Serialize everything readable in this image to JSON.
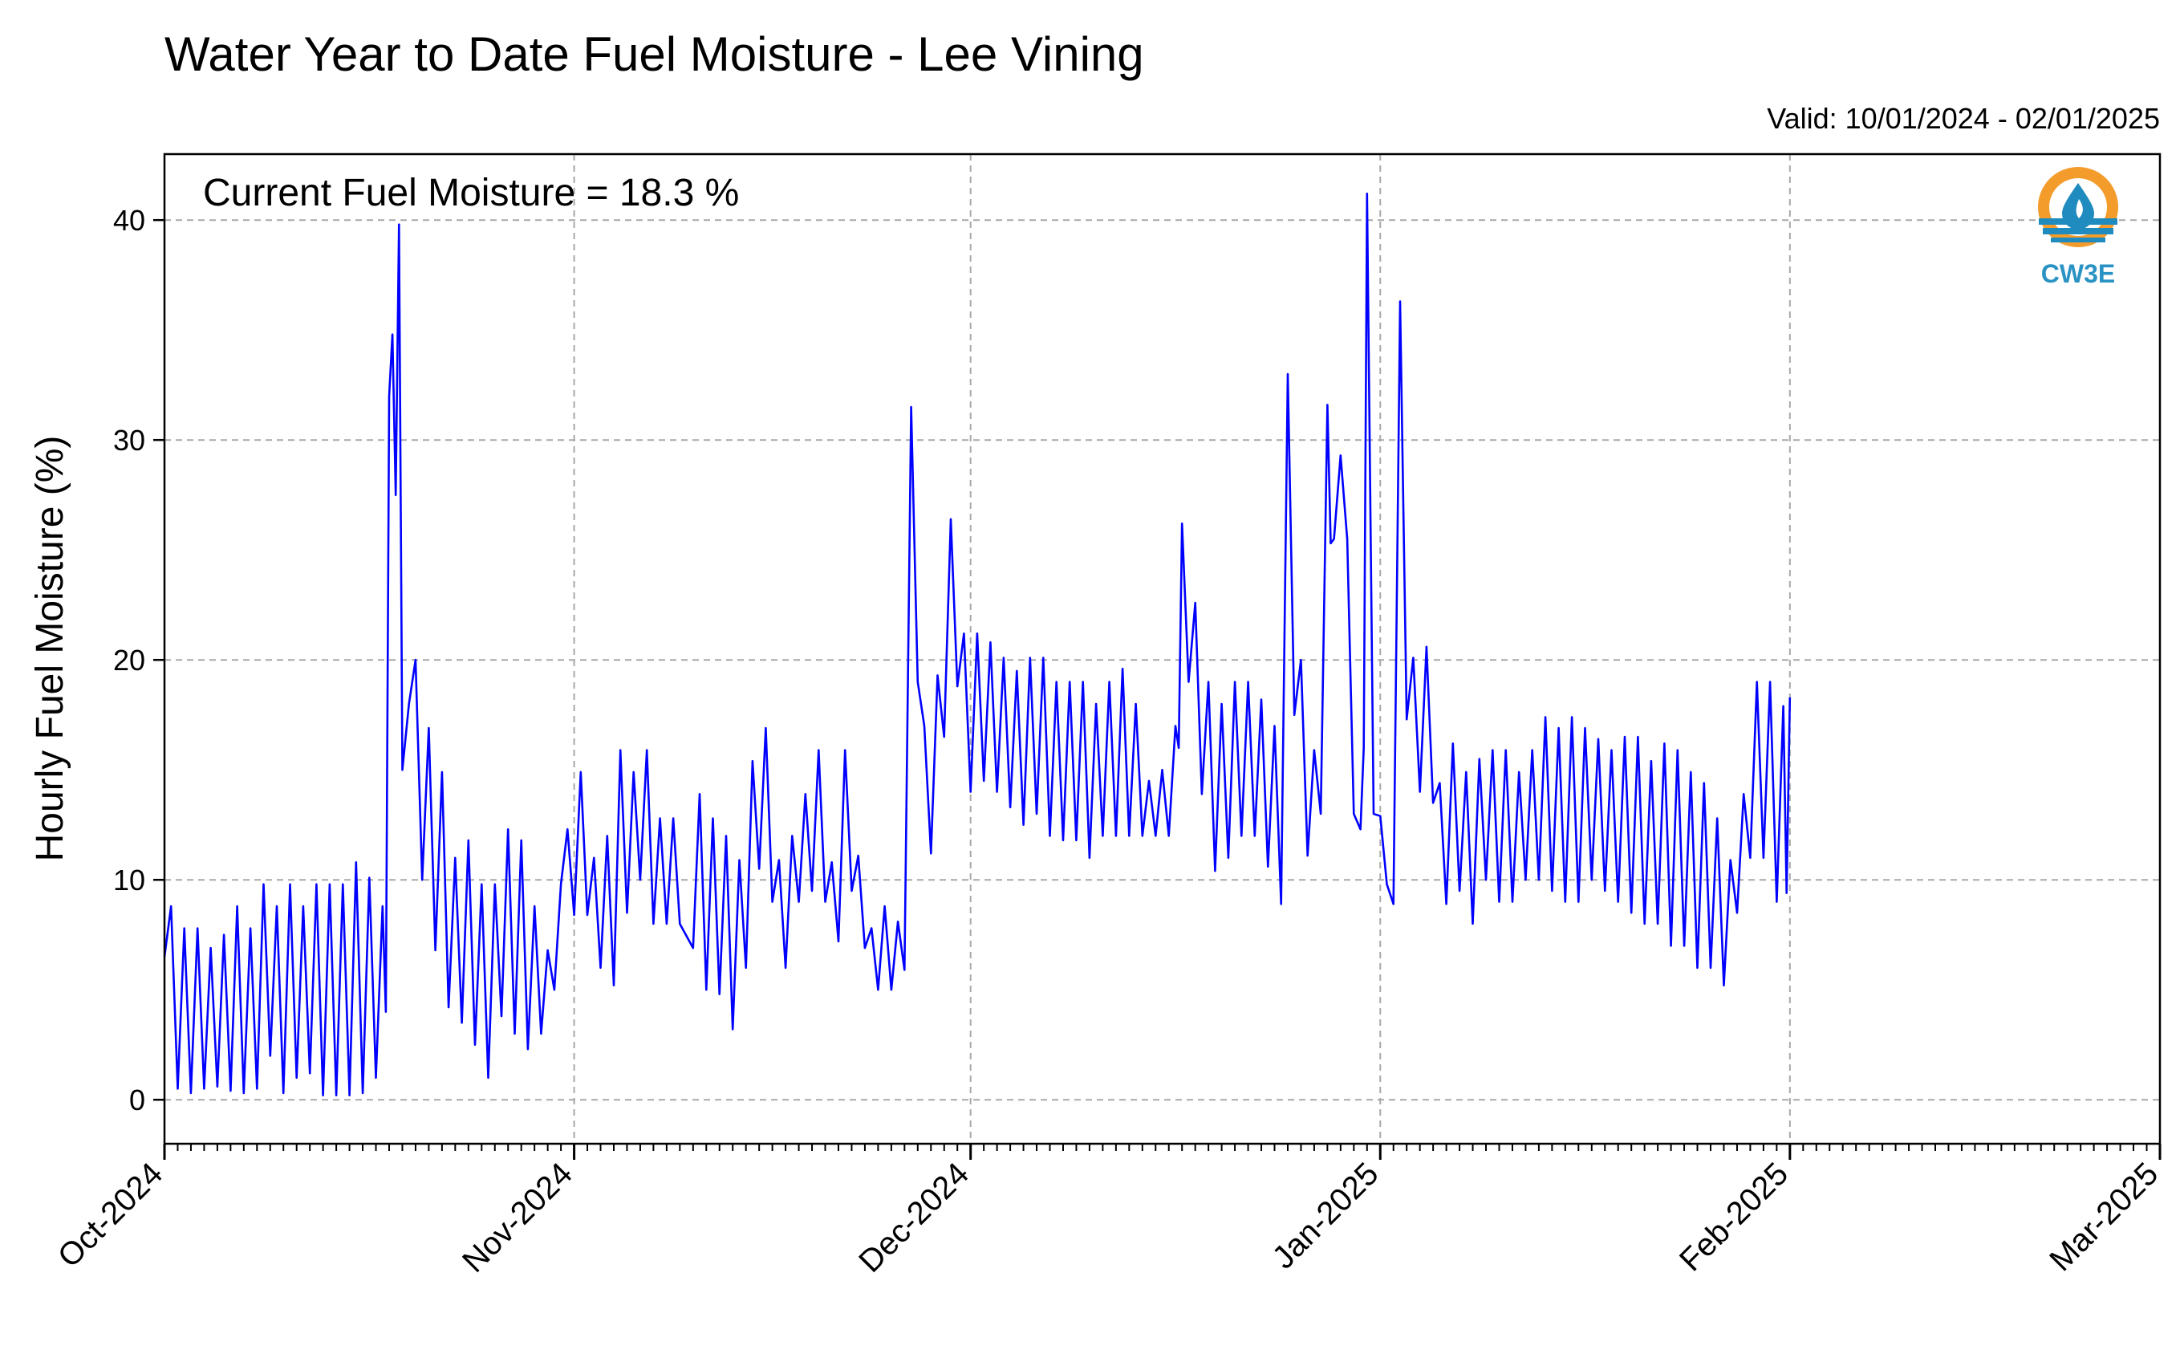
{
  "chart_data": {
    "type": "line",
    "title": "Water Year to Date Fuel Moisture - Lee Vining",
    "subtitle": "Valid: 10/01/2024 - 02/01/2025",
    "annotation": "Current Fuel Moisture = 18.3 %",
    "xlabel": "",
    "ylabel": "Hourly Fuel Moisture (%)",
    "x_range": [
      "2024-10-01",
      "2025-03-01"
    ],
    "ylim": [
      -2,
      43
    ],
    "yticks": [
      0,
      10,
      20,
      30,
      40
    ],
    "ytick_labels": [
      "0",
      "10",
      "20",
      "30",
      "40"
    ],
    "xticks": [
      "2024-10-01",
      "2024-11-01",
      "2024-12-01",
      "2025-01-01",
      "2025-02-01",
      "2025-03-01"
    ],
    "xtick_labels": [
      "Oct-2024",
      "Nov-2024",
      "Dec-2024",
      "Jan-2025",
      "Feb-2025",
      "Mar-2025"
    ],
    "grid": true,
    "line_color": "#0000ff",
    "series": [
      {
        "points": [
          [
            "2024-10-01",
            6.5
          ],
          [
            "2024-10-01T12",
            8.8
          ],
          [
            "2024-10-02",
            0.5
          ],
          [
            "2024-10-02T12",
            7.8
          ],
          [
            "2024-10-03",
            0.3
          ],
          [
            "2024-10-03T12",
            7.8
          ],
          [
            "2024-10-04",
            0.5
          ],
          [
            "2024-10-04T12",
            6.9
          ],
          [
            "2024-10-05",
            0.6
          ],
          [
            "2024-10-05T12",
            7.5
          ],
          [
            "2024-10-06",
            0.4
          ],
          [
            "2024-10-06T12",
            8.8
          ],
          [
            "2024-10-07",
            0.3
          ],
          [
            "2024-10-07T12",
            7.8
          ],
          [
            "2024-10-08",
            0.5
          ],
          [
            "2024-10-08T12",
            9.8
          ],
          [
            "2024-10-09",
            2.0
          ],
          [
            "2024-10-09T12",
            8.8
          ],
          [
            "2024-10-10",
            0.3
          ],
          [
            "2024-10-10T12",
            9.8
          ],
          [
            "2024-10-11",
            1.0
          ],
          [
            "2024-10-11T12",
            8.8
          ],
          [
            "2024-10-12",
            1.2
          ],
          [
            "2024-10-12T12",
            9.8
          ],
          [
            "2024-10-13",
            0.2
          ],
          [
            "2024-10-13T12",
            9.8
          ],
          [
            "2024-10-14",
            0.2
          ],
          [
            "2024-10-14T12",
            9.8
          ],
          [
            "2024-10-15",
            0.2
          ],
          [
            "2024-10-15T12",
            10.8
          ],
          [
            "2024-10-16",
            0.3
          ],
          [
            "2024-10-16T12",
            10.1
          ],
          [
            "2024-10-17",
            1.0
          ],
          [
            "2024-10-17T12",
            8.8
          ],
          [
            "2024-10-17T18",
            4.0
          ],
          [
            "2024-10-18",
            32.0
          ],
          [
            "2024-10-18T06",
            34.8
          ],
          [
            "2024-10-18T12",
            27.5
          ],
          [
            "2024-10-18T18",
            39.8
          ],
          [
            "2024-10-19",
            15.0
          ],
          [
            "2024-10-19T12",
            18.0
          ],
          [
            "2024-10-20",
            20.0
          ],
          [
            "2024-10-20T12",
            10.0
          ],
          [
            "2024-10-21",
            16.9
          ],
          [
            "2024-10-21T12",
            6.8
          ],
          [
            "2024-10-22",
            14.9
          ],
          [
            "2024-10-22T12",
            4.2
          ],
          [
            "2024-10-23",
            11.0
          ],
          [
            "2024-10-23T12",
            3.5
          ],
          [
            "2024-10-24",
            11.8
          ],
          [
            "2024-10-24T12",
            2.5
          ],
          [
            "2024-10-25",
            9.8
          ],
          [
            "2024-10-25T12",
            1.0
          ],
          [
            "2024-10-26",
            9.8
          ],
          [
            "2024-10-26T12",
            3.8
          ],
          [
            "2024-10-27",
            12.3
          ],
          [
            "2024-10-27T12",
            3.0
          ],
          [
            "2024-10-28",
            11.8
          ],
          [
            "2024-10-28T12",
            2.3
          ],
          [
            "2024-10-29",
            8.8
          ],
          [
            "2024-10-29T12",
            3.0
          ],
          [
            "2024-10-30",
            6.8
          ],
          [
            "2024-10-30T12",
            5.0
          ],
          [
            "2024-10-31",
            9.8
          ],
          [
            "2024-10-31T12",
            12.3
          ],
          [
            "2024-11-01",
            8.4
          ],
          [
            "2024-11-01T12",
            14.9
          ],
          [
            "2024-11-02",
            8.4
          ],
          [
            "2024-11-02T12",
            11.0
          ],
          [
            "2024-11-03",
            6.0
          ],
          [
            "2024-11-03T12",
            12.0
          ],
          [
            "2024-11-04",
            5.2
          ],
          [
            "2024-11-04T12",
            15.9
          ],
          [
            "2024-11-05",
            8.5
          ],
          [
            "2024-11-05T12",
            14.9
          ],
          [
            "2024-11-06",
            10.0
          ],
          [
            "2024-11-06T12",
            15.9
          ],
          [
            "2024-11-07",
            8.0
          ],
          [
            "2024-11-07T12",
            12.8
          ],
          [
            "2024-11-08",
            8.0
          ],
          [
            "2024-11-08T12",
            12.8
          ],
          [
            "2024-11-09",
            8.0
          ],
          [
            "2024-11-10",
            6.9
          ],
          [
            "2024-11-10T12",
            13.9
          ],
          [
            "2024-11-11",
            5.0
          ],
          [
            "2024-11-11T12",
            12.8
          ],
          [
            "2024-11-12",
            4.8
          ],
          [
            "2024-11-12T12",
            12.0
          ],
          [
            "2024-11-13",
            3.2
          ],
          [
            "2024-11-13T12",
            10.9
          ],
          [
            "2024-11-14",
            6.0
          ],
          [
            "2024-11-14T12",
            15.4
          ],
          [
            "2024-11-15",
            10.5
          ],
          [
            "2024-11-15T12",
            16.9
          ],
          [
            "2024-11-16",
            9.0
          ],
          [
            "2024-11-16T12",
            10.9
          ],
          [
            "2024-11-17",
            6.0
          ],
          [
            "2024-11-17T12",
            12.0
          ],
          [
            "2024-11-18",
            9.0
          ],
          [
            "2024-11-18T12",
            13.9
          ],
          [
            "2024-11-19",
            9.5
          ],
          [
            "2024-11-19T12",
            15.9
          ],
          [
            "2024-11-20",
            9.0
          ],
          [
            "2024-11-20T12",
            10.8
          ],
          [
            "2024-11-21",
            7.2
          ],
          [
            "2024-11-21T12",
            15.9
          ],
          [
            "2024-11-22",
            9.5
          ],
          [
            "2024-11-22T12",
            11.1
          ],
          [
            "2024-11-23",
            6.9
          ],
          [
            "2024-11-23T12",
            7.8
          ],
          [
            "2024-11-24",
            5.0
          ],
          [
            "2024-11-24T12",
            8.8
          ],
          [
            "2024-11-25",
            5.0
          ],
          [
            "2024-11-25T12",
            8.1
          ],
          [
            "2024-11-26",
            5.9
          ],
          [
            "2024-11-26T12",
            31.5
          ],
          [
            "2024-11-27",
            19.0
          ],
          [
            "2024-11-27T12",
            17.0
          ],
          [
            "2024-11-28",
            11.2
          ],
          [
            "2024-11-28T12",
            19.3
          ],
          [
            "2024-11-29",
            16.5
          ],
          [
            "2024-11-29T12",
            26.4
          ],
          [
            "2024-11-30",
            18.8
          ],
          [
            "2024-11-30T12",
            21.2
          ],
          [
            "2024-12-01",
            14.0
          ],
          [
            "2024-12-01T12",
            21.2
          ],
          [
            "2024-12-02",
            14.5
          ],
          [
            "2024-12-02T12",
            20.8
          ],
          [
            "2024-12-03",
            14.0
          ],
          [
            "2024-12-03T12",
            20.1
          ],
          [
            "2024-12-04",
            13.3
          ],
          [
            "2024-12-04T12",
            19.5
          ],
          [
            "2024-12-05",
            12.5
          ],
          [
            "2024-12-05T12",
            20.1
          ],
          [
            "2024-12-06",
            13.0
          ],
          [
            "2024-12-06T12",
            20.1
          ],
          [
            "2024-12-07",
            12.0
          ],
          [
            "2024-12-07T12",
            19.0
          ],
          [
            "2024-12-08",
            11.8
          ],
          [
            "2024-12-08T12",
            19.0
          ],
          [
            "2024-12-09",
            11.8
          ],
          [
            "2024-12-09T12",
            19.0
          ],
          [
            "2024-12-10",
            11.0
          ],
          [
            "2024-12-10T12",
            18.0
          ],
          [
            "2024-12-11",
            12.0
          ],
          [
            "2024-12-11T12",
            19.0
          ],
          [
            "2024-12-12",
            12.0
          ],
          [
            "2024-12-12T12",
            19.6
          ],
          [
            "2024-12-13",
            12.0
          ],
          [
            "2024-12-13T12",
            18.0
          ],
          [
            "2024-12-14",
            12.0
          ],
          [
            "2024-12-14T12",
            14.5
          ],
          [
            "2024-12-15",
            12.0
          ],
          [
            "2024-12-15T12",
            15.0
          ],
          [
            "2024-12-16",
            12.0
          ],
          [
            "2024-12-16T12",
            17.0
          ],
          [
            "2024-12-16T18",
            16.0
          ],
          [
            "2024-12-17",
            26.2
          ],
          [
            "2024-12-17T12",
            19.0
          ],
          [
            "2024-12-18",
            22.6
          ],
          [
            "2024-12-18T12",
            13.9
          ],
          [
            "2024-12-19",
            19.0
          ],
          [
            "2024-12-19T12",
            10.4
          ],
          [
            "2024-12-20",
            18.0
          ],
          [
            "2024-12-20T12",
            11.0
          ],
          [
            "2024-12-21",
            19.0
          ],
          [
            "2024-12-21T12",
            12.0
          ],
          [
            "2024-12-22",
            19.0
          ],
          [
            "2024-12-22T12",
            12.0
          ],
          [
            "2024-12-23",
            18.2
          ],
          [
            "2024-12-23T12",
            10.6
          ],
          [
            "2024-12-24",
            17.0
          ],
          [
            "2024-12-24T12",
            8.9
          ],
          [
            "2024-12-25",
            33.0
          ],
          [
            "2024-12-25T12",
            17.5
          ],
          [
            "2024-12-26",
            20.0
          ],
          [
            "2024-12-26T12",
            11.1
          ],
          [
            "2024-12-27",
            15.9
          ],
          [
            "2024-12-27T12",
            13.0
          ],
          [
            "2024-12-28",
            31.6
          ],
          [
            "2024-12-28T06",
            25.3
          ],
          [
            "2024-12-28T12",
            25.5
          ],
          [
            "2024-12-29",
            29.3
          ],
          [
            "2024-12-29T12",
            25.5
          ],
          [
            "2024-12-30",
            13.0
          ],
          [
            "2024-12-30T12",
            12.3
          ],
          [
            "2024-12-30T18",
            16.0
          ],
          [
            "2024-12-31",
            41.2
          ],
          [
            "2024-12-31T12",
            13.0
          ],
          [
            "2025-01-01",
            12.9
          ],
          [
            "2025-01-01T12",
            9.8
          ],
          [
            "2025-01-02",
            8.9
          ],
          [
            "2025-01-02T12",
            36.3
          ],
          [
            "2025-01-03",
            17.3
          ],
          [
            "2025-01-03T12",
            20.1
          ],
          [
            "2025-01-04",
            14.0
          ],
          [
            "2025-01-04T12",
            20.6
          ],
          [
            "2025-01-05",
            13.5
          ],
          [
            "2025-01-05T12",
            14.4
          ],
          [
            "2025-01-06",
            8.9
          ],
          [
            "2025-01-06T12",
            16.2
          ],
          [
            "2025-01-07",
            9.5
          ],
          [
            "2025-01-07T12",
            14.9
          ],
          [
            "2025-01-08",
            8.0
          ],
          [
            "2025-01-08T12",
            15.5
          ],
          [
            "2025-01-09",
            10.0
          ],
          [
            "2025-01-09T12",
            15.9
          ],
          [
            "2025-01-10",
            9.0
          ],
          [
            "2025-01-10T12",
            15.9
          ],
          [
            "2025-01-11",
            9.0
          ],
          [
            "2025-01-11T12",
            14.9
          ],
          [
            "2025-01-12",
            10.0
          ],
          [
            "2025-01-12T12",
            15.9
          ],
          [
            "2025-01-13",
            10.0
          ],
          [
            "2025-01-13T12",
            17.4
          ],
          [
            "2025-01-14",
            9.5
          ],
          [
            "2025-01-14T12",
            16.9
          ],
          [
            "2025-01-15",
            9.0
          ],
          [
            "2025-01-15T12",
            17.4
          ],
          [
            "2025-01-16",
            9.0
          ],
          [
            "2025-01-16T12",
            16.9
          ],
          [
            "2025-01-17",
            10.0
          ],
          [
            "2025-01-17T12",
            16.4
          ],
          [
            "2025-01-18",
            9.5
          ],
          [
            "2025-01-18T12",
            15.9
          ],
          [
            "2025-01-19",
            9.0
          ],
          [
            "2025-01-19T12",
            16.5
          ],
          [
            "2025-01-20",
            8.5
          ],
          [
            "2025-01-20T12",
            16.5
          ],
          [
            "2025-01-21",
            8.0
          ],
          [
            "2025-01-21T12",
            15.4
          ],
          [
            "2025-01-22",
            8.0
          ],
          [
            "2025-01-22T12",
            16.2
          ],
          [
            "2025-01-23",
            7.0
          ],
          [
            "2025-01-23T12",
            15.9
          ],
          [
            "2025-01-24",
            7.0
          ],
          [
            "2025-01-24T12",
            14.9
          ],
          [
            "2025-01-25",
            6.0
          ],
          [
            "2025-01-25T12",
            14.4
          ],
          [
            "2025-01-26",
            6.0
          ],
          [
            "2025-01-26T12",
            12.8
          ],
          [
            "2025-01-27",
            5.2
          ],
          [
            "2025-01-27T12",
            10.9
          ],
          [
            "2025-01-28",
            8.5
          ],
          [
            "2025-01-28T12",
            13.9
          ],
          [
            "2025-01-29",
            11.0
          ],
          [
            "2025-01-29T12",
            19.0
          ],
          [
            "2025-01-30",
            11.0
          ],
          [
            "2025-01-30T12",
            19.0
          ],
          [
            "2025-01-31",
            9.0
          ],
          [
            "2025-01-31T12",
            17.9
          ],
          [
            "2025-01-31T18",
            9.4
          ],
          [
            "2025-02-01",
            18.3
          ]
        ]
      }
    ]
  },
  "logo": {
    "text": "CW3E",
    "ring_color": "#f39c2c",
    "wave_color": "#1f8bbf",
    "text_color": "#2a93c4"
  }
}
